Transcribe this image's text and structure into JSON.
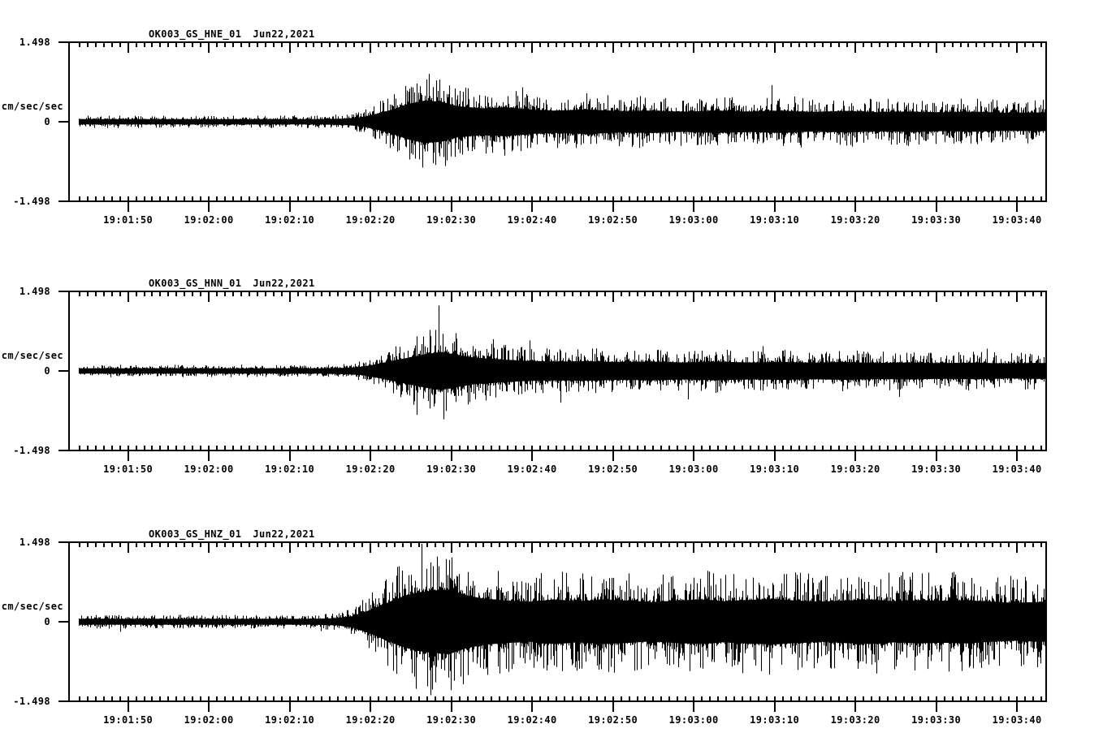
{
  "meta": {
    "background_color": "#ffffff",
    "trace_color": "#000000",
    "description": "Three-channel strong-motion seismogram strip plot"
  },
  "chart_data": [
    {
      "type": "line",
      "subtype": "seismogram",
      "title": "OK003_GS_HNE_01",
      "date_label": "Jun22,2021",
      "ylabel": "cm/sec/sec",
      "ytick_labels": [
        "1.498",
        "0",
        "-1.498"
      ],
      "ylim": [
        -1.498,
        1.498
      ],
      "x_start": "19:01:43",
      "x_end": "19:03:44",
      "duration_seconds": 120.9,
      "first_major_tick_offset_seconds": 7.3,
      "major_tick_interval_seconds": 10,
      "minor_tick_interval_seconds": 1,
      "xtick_labels": [
        "19:01:50",
        "19:02:00",
        "19:02:10",
        "19:02:20",
        "19:02:30",
        "19:02:40",
        "19:02:50",
        "19:03:00",
        "19:03:10",
        "19:03:20",
        "19:03:30",
        "19:03:40"
      ],
      "grid": false,
      "legend": false,
      "seed": 11,
      "envelope_keypoints": [
        [
          0,
          0.12
        ],
        [
          20,
          0.12
        ],
        [
          31,
          0.12
        ],
        [
          34,
          0.14
        ],
        [
          36,
          0.2
        ],
        [
          38,
          0.35
        ],
        [
          40,
          0.55
        ],
        [
          42,
          0.8
        ],
        [
          44,
          0.95
        ],
        [
          46,
          0.9
        ],
        [
          48,
          0.7
        ],
        [
          51,
          0.6
        ],
        [
          54,
          0.65
        ],
        [
          57,
          0.55
        ],
        [
          60,
          0.5
        ],
        [
          64,
          0.55
        ],
        [
          68,
          0.48
        ],
        [
          72,
          0.5
        ],
        [
          76,
          0.45
        ],
        [
          80,
          0.5
        ],
        [
          84,
          0.46
        ],
        [
          88,
          0.5
        ],
        [
          92,
          0.44
        ],
        [
          96,
          0.48
        ],
        [
          100,
          0.43
        ],
        [
          104,
          0.46
        ],
        [
          108,
          0.42
        ],
        [
          112,
          0.45
        ],
        [
          116,
          0.4
        ],
        [
          121,
          0.42
        ]
      ]
    },
    {
      "type": "line",
      "subtype": "seismogram",
      "title": "OK003_GS_HNN_01",
      "date_label": "Jun22,2021",
      "ylabel": "cm/sec/sec",
      "ytick_labels": [
        "1.498",
        "0",
        "-1.498"
      ],
      "ylim": [
        -1.498,
        1.498
      ],
      "x_start": "19:01:43",
      "x_end": "19:03:44",
      "duration_seconds": 120.9,
      "first_major_tick_offset_seconds": 7.3,
      "major_tick_interval_seconds": 10,
      "minor_tick_interval_seconds": 1,
      "xtick_labels": [
        "19:01:50",
        "19:02:00",
        "19:02:10",
        "19:02:20",
        "19:02:30",
        "19:02:40",
        "19:02:50",
        "19:03:00",
        "19:03:10",
        "19:03:20",
        "19:03:30",
        "19:03:40"
      ],
      "grid": false,
      "legend": false,
      "seed": 22,
      "envelope_keypoints": [
        [
          0,
          0.12
        ],
        [
          31,
          0.12
        ],
        [
          34,
          0.14
        ],
        [
          36,
          0.18
        ],
        [
          38,
          0.3
        ],
        [
          40,
          0.45
        ],
        [
          42,
          0.6
        ],
        [
          44,
          0.75
        ],
        [
          46,
          0.85
        ],
        [
          48,
          0.72
        ],
        [
          50,
          0.6
        ],
        [
          53,
          0.52
        ],
        [
          56,
          0.46
        ],
        [
          60,
          0.42
        ],
        [
          64,
          0.44
        ],
        [
          68,
          0.4
        ],
        [
          72,
          0.42
        ],
        [
          76,
          0.38
        ],
        [
          80,
          0.42
        ],
        [
          84,
          0.38
        ],
        [
          88,
          0.4
        ],
        [
          92,
          0.37
        ],
        [
          96,
          0.4
        ],
        [
          100,
          0.36
        ],
        [
          104,
          0.38
        ],
        [
          108,
          0.35
        ],
        [
          112,
          0.37
        ],
        [
          116,
          0.34
        ],
        [
          121,
          0.36
        ]
      ]
    },
    {
      "type": "line",
      "subtype": "seismogram",
      "title": "OK003_GS_HNZ_01",
      "date_label": "Jun22,2021",
      "ylabel": "cm/sec/sec",
      "ytick_labels": [
        "1.498",
        "0",
        "-1.498"
      ],
      "ylim": [
        -1.498,
        1.498
      ],
      "x_start": "19:01:43",
      "x_end": "19:03:44",
      "duration_seconds": 120.9,
      "first_major_tick_offset_seconds": 7.3,
      "major_tick_interval_seconds": 10,
      "minor_tick_interval_seconds": 1,
      "xtick_labels": [
        "19:01:50",
        "19:02:00",
        "19:02:10",
        "19:02:20",
        "19:02:30",
        "19:02:40",
        "19:02:50",
        "19:03:00",
        "19:03:10",
        "19:03:20",
        "19:03:30",
        "19:03:40"
      ],
      "grid": false,
      "legend": false,
      "seed": 33,
      "envelope_keypoints": [
        [
          0,
          0.13
        ],
        [
          30,
          0.13
        ],
        [
          33,
          0.16
        ],
        [
          35,
          0.25
        ],
        [
          37,
          0.5
        ],
        [
          39,
          0.8
        ],
        [
          41,
          1.1
        ],
        [
          43,
          1.3
        ],
        [
          45,
          1.4
        ],
        [
          47,
          1.45
        ],
        [
          49,
          1.2
        ],
        [
          51,
          1.05
        ],
        [
          54,
          0.95
        ],
        [
          57,
          0.9
        ],
        [
          60,
          1.0
        ],
        [
          63,
          0.92
        ],
        [
          66,
          1.0
        ],
        [
          69,
          0.95
        ],
        [
          72,
          0.88
        ],
        [
          75,
          0.95
        ],
        [
          78,
          1.0
        ],
        [
          81,
          0.92
        ],
        [
          84,
          0.98
        ],
        [
          87,
          1.02
        ],
        [
          90,
          0.95
        ],
        [
          93,
          0.9
        ],
        [
          96,
          0.95
        ],
        [
          99,
          1.0
        ],
        [
          102,
          0.92
        ],
        [
          105,
          0.97
        ],
        [
          108,
          0.94
        ],
        [
          111,
          0.97
        ],
        [
          114,
          0.9
        ],
        [
          117,
          0.85
        ],
        [
          121,
          0.9
        ]
      ]
    }
  ]
}
